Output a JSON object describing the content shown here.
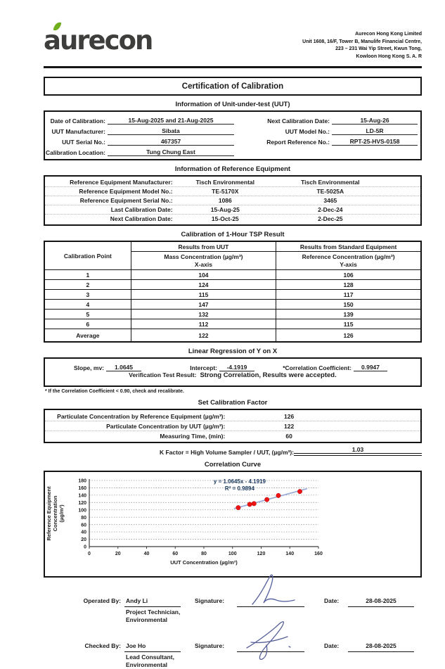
{
  "header": {
    "logo_text": "aurecon",
    "address_lines": [
      "Aurecon Hong Kong Limited",
      "Unit 1608, 16/F, Tower B, Manulife Financial Centre,",
      "223 – 231 Wai Yip Street, Kwun Tong,",
      "Kowloon Hong Kong S. A. R"
    ]
  },
  "title": "Certification of Calibration",
  "uut_info": {
    "heading": "Information of Unit-under-test (UUT)",
    "left_rows": [
      {
        "label": "Date of Calibration:",
        "value": "15-Aug-2025 and 21-Aug-2025"
      },
      {
        "label": "UUT Manufacturer:",
        "value": "Sibata"
      },
      {
        "label": "UUT Serial No.:",
        "value": "467357"
      },
      {
        "label": "Calibration Location:",
        "value": "Tung Chung East"
      }
    ],
    "right_rows": [
      {
        "label": "Next Calibration Date:",
        "value": "15-Aug-26"
      },
      {
        "label": "UUT Model No.:",
        "value": "LD-5R"
      },
      {
        "label": "Report Reference No.:",
        "value": "RPT-25-HVS-0158"
      }
    ]
  },
  "ref_equipment": {
    "heading": "Information of Reference Equipment",
    "rows": [
      {
        "label": "Reference Equipment Manufacturer:",
        "col1": "Tisch Environmental",
        "col2": "Tisch Environmental"
      },
      {
        "label": "Reference Equipment Model No.:",
        "col1": "TE-5170X",
        "col2": "TE-5025A"
      },
      {
        "label": "Reference Equipment Serial No.:",
        "col1": "1086",
        "col2": "3465"
      },
      {
        "label": "Last Calibration Date:",
        "col1": "15-Aug-25",
        "col2": "2-Dec-24"
      },
      {
        "label": "Next Calibration Date:",
        "col1": "15-Oct-25",
        "col2": "2-Dec-25"
      }
    ]
  },
  "tsp_table": {
    "heading": "Calibration of 1-Hour TSP Result",
    "col0_header": "Calibration Point",
    "uut_group_header": "Results from UUT",
    "std_group_header": "Results from Standard Equipment",
    "uut_sub_header": "Mass Concentration (µg/m³)",
    "uut_axis_label": "X-axis",
    "std_sub_header": "Reference Concentration (µg/m³)",
    "std_axis_label": "Y-axis",
    "rows": [
      {
        "point": "1",
        "uut": "104",
        "std": "106"
      },
      {
        "point": "2",
        "uut": "124",
        "std": "128"
      },
      {
        "point": "3",
        "uut": "115",
        "std": "117"
      },
      {
        "point": "4",
        "uut": "147",
        "std": "150"
      },
      {
        "point": "5",
        "uut": "132",
        "std": "139"
      },
      {
        "point": "6",
        "uut": "112",
        "std": "115"
      },
      {
        "point": "Average",
        "uut": "122",
        "std": "126"
      }
    ]
  },
  "regression": {
    "heading": "Linear Regression of Y on X",
    "slope_label": "Slope, mv:",
    "slope_value": "1.0645",
    "intercept_label": "Intercept:",
    "intercept_value": "-4.1919",
    "corr_label": "*Correlation Coefficient:",
    "corr_value": "0.9947",
    "verification_label": "Verification Test Result:",
    "verification_value": "Strong Correlation, Results were accepted.",
    "footnote": "* If the Correlation Coefficient < 0.90, check and recalibrate."
  },
  "calibration_factor": {
    "heading": "Set Calibration Factor",
    "rows": [
      {
        "label": "Particulate Concentration by Reference Equipment (µg/m³):",
        "value": "126"
      },
      {
        "label": "Particulate Concentration  by UUT (µg/m³):",
        "value": "122"
      },
      {
        "label": "Measuring Time, (min):",
        "value": "60"
      }
    ],
    "k_factor_label": "K Factor = High Volume Sampler / UUT, (µg/m³):",
    "k_factor_value": "1.03"
  },
  "chart_data": {
    "type": "scatter",
    "title": "Correlation Curve",
    "xlabel": "UUT Concentration (µg/m³)",
    "ylabel_lines": [
      "Reference Equipment",
      "Concentration",
      "(µg/m³)"
    ],
    "xlim": [
      0,
      160
    ],
    "ylim": [
      0,
      180
    ],
    "x_ticks": [
      0,
      20,
      40,
      60,
      80,
      100,
      120,
      140,
      160
    ],
    "y_ticks": [
      0,
      20,
      40,
      60,
      80,
      100,
      120,
      140,
      160,
      180
    ],
    "grid": "horizontal-dashed",
    "points": [
      [
        104,
        106
      ],
      [
        124,
        128
      ],
      [
        115,
        117
      ],
      [
        147,
        150
      ],
      [
        132,
        139
      ],
      [
        112,
        115
      ]
    ],
    "trendline": {
      "slope": 1.0645,
      "intercept": -4.1919,
      "x_start": 101,
      "x_end": 152
    },
    "annotation_line1": "y = 1.0645x - 4.1919",
    "annotation_line2": "R² = 0.9894",
    "point_color": "#ee1414",
    "trend_color": "#98aad6",
    "annotation_color": "#17375d",
    "legend": "none"
  },
  "signatures": [
    {
      "role_label": "Operated By:",
      "name": "Andy Li",
      "title_line1": "Project Technician,",
      "title_line2": "Environmental",
      "sig_label": "Signature:",
      "date_label": "Date:",
      "date": "28-08-2025"
    },
    {
      "role_label": "Checked By:",
      "name": "Joe Ho",
      "title_line1": "Lead Consultant,",
      "title_line2": "Environmental",
      "sig_label": "Signature:",
      "date_label": "Date:",
      "date": "28-08-2025"
    }
  ]
}
